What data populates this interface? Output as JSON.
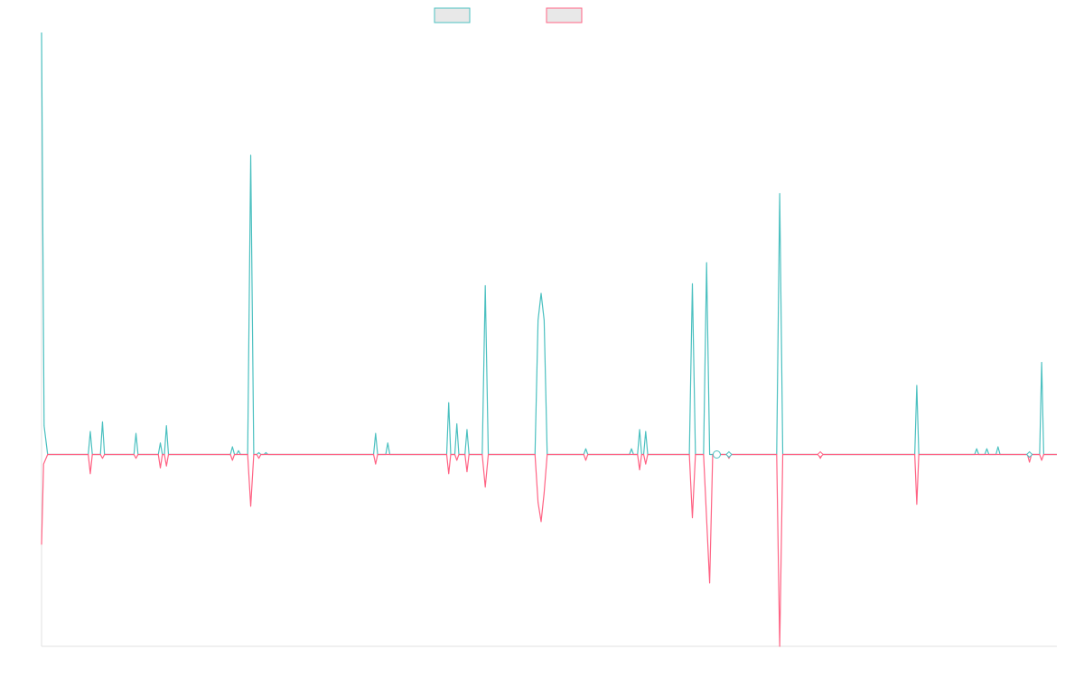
{
  "chart_data": {
    "type": "line",
    "title": "",
    "xlabel": "",
    "ylabel": "",
    "grid": false,
    "legend_placement": "top-center",
    "colors": {
      "teal": "#4bc0c0",
      "pink": "#ff6384",
      "legend_fill": "#e8e8e8",
      "axis": "#e0e0e0"
    },
    "ylim": [
      -1.0,
      2.2
    ],
    "xlim": [
      0,
      100
    ],
    "series": [
      {
        "color_key": "teal",
        "values": [
          [
            0.0,
            2.2
          ],
          [
            0.25,
            0.15
          ],
          [
            0.6,
            0.0
          ],
          [
            4.6,
            0.0
          ],
          [
            4.8,
            0.12
          ],
          [
            5.0,
            0.0
          ],
          [
            5.8,
            0.0
          ],
          [
            6.0,
            0.17
          ],
          [
            6.2,
            0.0
          ],
          [
            9.1,
            0.0
          ],
          [
            9.3,
            0.11
          ],
          [
            9.5,
            0.0
          ],
          [
            11.5,
            0.0
          ],
          [
            11.7,
            0.06
          ],
          [
            11.9,
            0.0
          ],
          [
            12.1,
            0.0
          ],
          [
            12.3,
            0.15
          ],
          [
            12.5,
            0.0
          ],
          [
            18.6,
            0.0
          ],
          [
            18.8,
            0.04
          ],
          [
            19.0,
            0.0
          ],
          [
            19.2,
            0.0
          ],
          [
            19.4,
            0.02
          ],
          [
            19.6,
            0.0
          ],
          [
            20.3,
            0.0
          ],
          [
            20.6,
            1.56
          ],
          [
            20.9,
            0.0
          ],
          [
            21.2,
            0.0
          ],
          [
            21.4,
            0.01
          ],
          [
            21.6,
            0.0
          ],
          [
            21.9,
            0.0
          ],
          [
            22.1,
            0.01
          ],
          [
            22.3,
            0.0
          ],
          [
            32.7,
            0.0
          ],
          [
            32.9,
            0.11
          ],
          [
            33.1,
            0.0
          ],
          [
            33.9,
            0.0
          ],
          [
            34.1,
            0.06
          ],
          [
            34.3,
            0.0
          ],
          [
            39.9,
            0.0
          ],
          [
            40.1,
            0.27
          ],
          [
            40.3,
            0.0
          ],
          [
            40.7,
            0.0
          ],
          [
            40.9,
            0.16
          ],
          [
            41.1,
            0.0
          ],
          [
            41.7,
            0.0
          ],
          [
            41.9,
            0.13
          ],
          [
            42.1,
            0.0
          ],
          [
            43.4,
            0.0
          ],
          [
            43.7,
            0.88
          ],
          [
            44.0,
            0.0
          ],
          [
            48.6,
            0.0
          ],
          [
            48.9,
            0.7
          ],
          [
            49.2,
            0.84
          ],
          [
            49.5,
            0.7
          ],
          [
            49.8,
            0.0
          ],
          [
            53.4,
            0.0
          ],
          [
            53.6,
            0.03
          ],
          [
            53.8,
            0.0
          ],
          [
            57.9,
            0.0
          ],
          [
            58.1,
            0.03
          ],
          [
            58.3,
            0.0
          ],
          [
            58.7,
            0.0
          ],
          [
            58.9,
            0.13
          ],
          [
            59.1,
            0.0
          ],
          [
            59.3,
            0.0
          ],
          [
            59.5,
            0.12
          ],
          [
            59.7,
            0.0
          ],
          [
            63.8,
            0.0
          ],
          [
            64.1,
            0.89
          ],
          [
            64.4,
            0.0
          ],
          [
            65.2,
            0.0
          ],
          [
            65.5,
            1.0
          ],
          [
            65.8,
            0.0
          ],
          [
            72.4,
            0.0
          ],
          [
            72.7,
            1.36
          ],
          [
            73.0,
            0.0
          ],
          [
            86.0,
            0.0
          ],
          [
            86.2,
            0.36
          ],
          [
            86.4,
            0.0
          ],
          [
            91.9,
            0.0
          ],
          [
            92.1,
            0.03
          ],
          [
            92.3,
            0.0
          ],
          [
            92.9,
            0.0
          ],
          [
            93.1,
            0.03
          ],
          [
            93.3,
            0.0
          ],
          [
            94.0,
            0.0
          ],
          [
            94.2,
            0.04
          ],
          [
            94.4,
            0.0
          ],
          [
            98.3,
            0.0
          ],
          [
            98.5,
            0.48
          ],
          [
            98.7,
            0.0
          ],
          [
            100.0,
            0.0
          ]
        ]
      },
      {
        "color_key": "pink",
        "values": [
          [
            0.0,
            -0.47
          ],
          [
            0.2,
            -0.05
          ],
          [
            0.6,
            0.0
          ],
          [
            4.6,
            0.0
          ],
          [
            4.8,
            -0.1
          ],
          [
            5.0,
            0.0
          ],
          [
            5.8,
            0.0
          ],
          [
            6.0,
            -0.02
          ],
          [
            6.2,
            0.0
          ],
          [
            9.1,
            0.0
          ],
          [
            9.3,
            -0.02
          ],
          [
            9.5,
            0.0
          ],
          [
            11.5,
            0.0
          ],
          [
            11.7,
            -0.07
          ],
          [
            11.9,
            0.0
          ],
          [
            12.1,
            0.0
          ],
          [
            12.3,
            -0.06
          ],
          [
            12.5,
            0.0
          ],
          [
            18.6,
            0.0
          ],
          [
            18.8,
            -0.03
          ],
          [
            19.0,
            0.0
          ],
          [
            20.3,
            0.0
          ],
          [
            20.6,
            -0.27
          ],
          [
            20.9,
            0.0
          ],
          [
            21.2,
            0.0
          ],
          [
            21.4,
            -0.02
          ],
          [
            21.6,
            0.0
          ],
          [
            32.7,
            0.0
          ],
          [
            32.9,
            -0.05
          ],
          [
            33.1,
            0.0
          ],
          [
            39.9,
            0.0
          ],
          [
            40.1,
            -0.1
          ],
          [
            40.3,
            0.0
          ],
          [
            40.7,
            0.0
          ],
          [
            40.9,
            -0.03
          ],
          [
            41.1,
            0.0
          ],
          [
            41.7,
            0.0
          ],
          [
            41.9,
            -0.09
          ],
          [
            42.1,
            0.0
          ],
          [
            43.4,
            0.0
          ],
          [
            43.7,
            -0.17
          ],
          [
            44.0,
            0.0
          ],
          [
            48.6,
            0.0
          ],
          [
            48.9,
            -0.25
          ],
          [
            49.2,
            -0.35
          ],
          [
            49.5,
            -0.2
          ],
          [
            49.8,
            0.0
          ],
          [
            53.4,
            0.0
          ],
          [
            53.6,
            -0.03
          ],
          [
            53.8,
            0.0
          ],
          [
            58.7,
            0.0
          ],
          [
            58.9,
            -0.08
          ],
          [
            59.1,
            0.0
          ],
          [
            59.3,
            0.0
          ],
          [
            59.5,
            -0.05
          ],
          [
            59.7,
            0.0
          ],
          [
            63.8,
            0.0
          ],
          [
            64.1,
            -0.33
          ],
          [
            64.4,
            0.0
          ],
          [
            65.2,
            0.0
          ],
          [
            65.8,
            -0.67
          ],
          [
            66.1,
            0.0
          ],
          [
            67.5,
            0.0
          ],
          [
            67.7,
            -0.02
          ],
          [
            67.9,
            0.0
          ],
          [
            72.4,
            0.0
          ],
          [
            72.7,
            -1.0
          ],
          [
            73.0,
            0.0
          ],
          [
            76.5,
            0.0
          ],
          [
            76.7,
            -0.02
          ],
          [
            76.9,
            0.0
          ],
          [
            86.0,
            0.0
          ],
          [
            86.2,
            -0.26
          ],
          [
            86.4,
            0.0
          ],
          [
            97.1,
            0.0
          ],
          [
            97.3,
            -0.04
          ],
          [
            97.5,
            0.0
          ],
          [
            98.3,
            0.0
          ],
          [
            98.5,
            -0.03
          ],
          [
            98.7,
            0.0
          ],
          [
            100.0,
            0.0
          ]
        ]
      }
    ],
    "markers": [
      {
        "series": 0,
        "x": 66.5,
        "y": 0.0,
        "kind": "circle"
      },
      {
        "series": 0,
        "x": 67.7,
        "y": 0.0,
        "kind": "diamond"
      },
      {
        "series": 1,
        "x": 76.7,
        "y": 0.0,
        "kind": "diamond"
      },
      {
        "series": 0,
        "x": 97.3,
        "y": 0.0,
        "kind": "diamond"
      }
    ]
  }
}
